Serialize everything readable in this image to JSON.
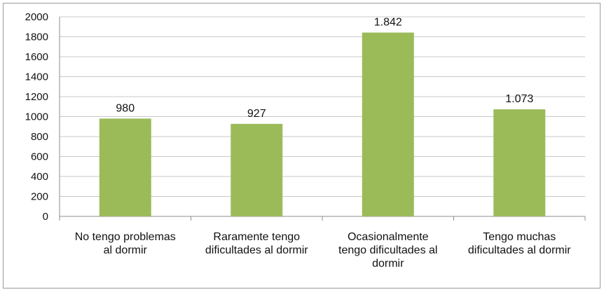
{
  "chart_data": {
    "type": "bar",
    "categories": [
      [
        "No tengo problemas",
        "al dormir"
      ],
      [
        "Raramente tengo",
        "dificultades al dormir"
      ],
      [
        "Ocasionalmente",
        "tengo dificultades al",
        "dormir"
      ],
      [
        "Tengo muchas",
        "dificultades al dormir"
      ]
    ],
    "values": [
      980,
      927,
      1842,
      1073
    ],
    "value_labels": [
      "980",
      "927",
      "1.842",
      "1.073"
    ],
    "yticks": [
      "0",
      "200",
      "400",
      "600",
      "800",
      "1000",
      "1200",
      "1400",
      "1600",
      "1800",
      "2000"
    ],
    "ylim": [
      0,
      2000
    ],
    "grid": true,
    "legend": "none",
    "colors": {
      "bar": "#9bbb59",
      "grid": "#c8c8c8",
      "axis": "#8c8c8c"
    }
  }
}
